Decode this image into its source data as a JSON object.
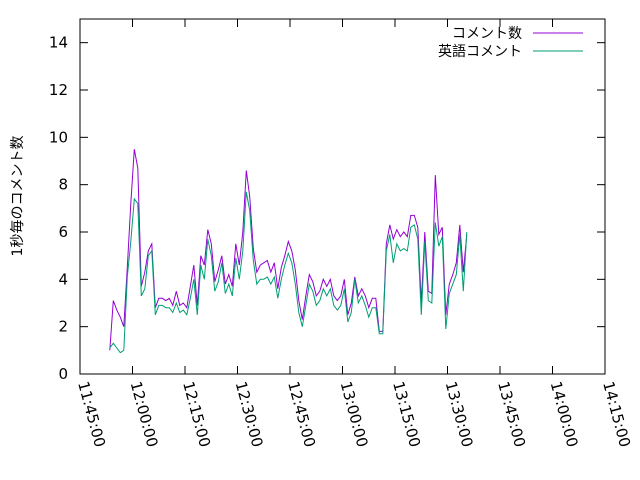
{
  "chart_data": {
    "type": "line",
    "title": "",
    "xlabel": "",
    "ylabel": "1秒毎のコメント数",
    "xlim": [
      "11:45:00",
      "14:15:00"
    ],
    "ylim": [
      0,
      15
    ],
    "xticks": [
      "11:45:00",
      "12:00:00",
      "12:15:00",
      "12:30:00",
      "12:45:00",
      "13:00:00",
      "13:15:00",
      "13:30:00",
      "13:45:00",
      "14:00:00",
      "14:15:00"
    ],
    "yticks": [
      0,
      2,
      4,
      6,
      8,
      10,
      12,
      14
    ],
    "legend_position": "top-right",
    "grid": false,
    "series": [
      {
        "name": "コメント数",
        "color": "#9400d3",
        "points": [
          [
            "11:53:30",
            1.0
          ],
          [
            "11:54:30",
            3.1
          ],
          [
            "11:55:30",
            2.7
          ],
          [
            "11:56:30",
            2.4
          ],
          [
            "11:57:30",
            2.0
          ],
          [
            "11:58:30",
            4.5
          ],
          [
            "11:59:30",
            7.2
          ],
          [
            "12:00:30",
            9.5
          ],
          [
            "12:01:30",
            8.7
          ],
          [
            "12:02:30",
            3.7
          ],
          [
            "12:03:30",
            4.3
          ],
          [
            "12:04:30",
            5.2
          ],
          [
            "12:05:30",
            5.5
          ],
          [
            "12:06:30",
            2.8
          ],
          [
            "12:07:30",
            3.2
          ],
          [
            "12:08:30",
            3.2
          ],
          [
            "12:09:30",
            3.1
          ],
          [
            "12:10:30",
            3.2
          ],
          [
            "12:11:30",
            2.9
          ],
          [
            "12:12:30",
            3.5
          ],
          [
            "12:13:30",
            2.9
          ],
          [
            "12:14:30",
            3.0
          ],
          [
            "12:15:30",
            2.8
          ],
          [
            "12:16:30",
            3.7
          ],
          [
            "12:17:30",
            4.6
          ],
          [
            "12:18:30",
            2.9
          ],
          [
            "12:19:30",
            5.0
          ],
          [
            "12:20:30",
            4.6
          ],
          [
            "12:21:30",
            6.1
          ],
          [
            "12:22:30",
            5.5
          ],
          [
            "12:23:30",
            3.9
          ],
          [
            "12:24:30",
            4.4
          ],
          [
            "12:25:30",
            5.0
          ],
          [
            "12:26:30",
            3.8
          ],
          [
            "12:27:30",
            4.2
          ],
          [
            "12:28:30",
            3.7
          ],
          [
            "12:29:30",
            5.5
          ],
          [
            "12:30:30",
            4.6
          ],
          [
            "12:31:30",
            6.0
          ],
          [
            "12:32:30",
            8.6
          ],
          [
            "12:33:30",
            7.5
          ],
          [
            "12:34:30",
            5.3
          ],
          [
            "12:35:30",
            4.3
          ],
          [
            "12:36:30",
            4.6
          ],
          [
            "12:37:30",
            4.7
          ],
          [
            "12:38:30",
            4.8
          ],
          [
            "12:39:30",
            4.3
          ],
          [
            "12:40:30",
            4.7
          ],
          [
            "12:41:30",
            3.6
          ],
          [
            "12:42:30",
            4.5
          ],
          [
            "12:43:30",
            5.0
          ],
          [
            "12:44:30",
            5.6
          ],
          [
            "12:45:30",
            5.2
          ],
          [
            "12:46:30",
            4.4
          ],
          [
            "12:47:30",
            3.1
          ],
          [
            "12:48:30",
            2.3
          ],
          [
            "12:49:30",
            3.3
          ],
          [
            "12:50:30",
            4.2
          ],
          [
            "12:51:30",
            3.9
          ],
          [
            "12:52:30",
            3.3
          ],
          [
            "12:53:30",
            3.5
          ],
          [
            "12:54:30",
            4.0
          ],
          [
            "12:55:30",
            3.7
          ],
          [
            "12:56:30",
            4.0
          ],
          [
            "12:57:30",
            3.3
          ],
          [
            "12:58:30",
            3.1
          ],
          [
            "12:59:30",
            3.3
          ],
          [
            "13:00:30",
            4.0
          ],
          [
            "13:01:30",
            2.5
          ],
          [
            "13:02:30",
            3.0
          ],
          [
            "13:03:30",
            4.1
          ],
          [
            "13:04:30",
            3.3
          ],
          [
            "13:05:30",
            3.6
          ],
          [
            "13:06:30",
            3.3
          ],
          [
            "13:07:30",
            2.8
          ],
          [
            "13:08:30",
            3.2
          ],
          [
            "13:09:30",
            3.2
          ],
          [
            "13:10:30",
            1.8
          ],
          [
            "13:11:30",
            1.8
          ],
          [
            "13:12:30",
            5.5
          ],
          [
            "13:13:30",
            6.3
          ],
          [
            "13:14:30",
            5.7
          ],
          [
            "13:15:30",
            6.1
          ],
          [
            "13:16:30",
            5.8
          ],
          [
            "13:17:30",
            6.0
          ],
          [
            "13:18:30",
            5.8
          ],
          [
            "13:19:30",
            6.7
          ],
          [
            "13:20:30",
            6.7
          ],
          [
            "13:21:30",
            6.2
          ],
          [
            "13:22:30",
            3.0
          ],
          [
            "13:23:30",
            6.0
          ],
          [
            "13:24:30",
            3.5
          ],
          [
            "13:25:30",
            3.4
          ],
          [
            "13:26:30",
            8.4
          ],
          [
            "13:27:30",
            5.9
          ],
          [
            "13:28:30",
            6.2
          ],
          [
            "13:29:30",
            2.5
          ],
          [
            "13:30:30",
            3.8
          ],
          [
            "13:31:30",
            4.2
          ],
          [
            "13:32:30",
            4.7
          ],
          [
            "13:33:30",
            6.3
          ],
          [
            "13:34:30",
            4.3
          ],
          [
            "13:35:30",
            5.9
          ]
        ]
      },
      {
        "name": "英語コメント",
        "color": "#009e73",
        "points": [
          [
            "11:53:30",
            1.1
          ],
          [
            "11:54:30",
            1.3
          ],
          [
            "11:55:30",
            1.1
          ],
          [
            "11:56:30",
            0.9
          ],
          [
            "11:57:30",
            1.0
          ],
          [
            "11:58:30",
            4.1
          ],
          [
            "11:59:30",
            5.6
          ],
          [
            "12:00:30",
            7.4
          ],
          [
            "12:01:30",
            7.2
          ],
          [
            "12:02:30",
            3.3
          ],
          [
            "12:03:30",
            3.6
          ],
          [
            "12:04:30",
            5.0
          ],
          [
            "12:05:30",
            5.2
          ],
          [
            "12:06:30",
            2.5
          ],
          [
            "12:07:30",
            2.9
          ],
          [
            "12:08:30",
            2.9
          ],
          [
            "12:09:30",
            2.8
          ],
          [
            "12:10:30",
            2.8
          ],
          [
            "12:11:30",
            2.6
          ],
          [
            "12:12:30",
            3.0
          ],
          [
            "12:13:30",
            2.6
          ],
          [
            "12:14:30",
            2.7
          ],
          [
            "12:15:30",
            2.5
          ],
          [
            "12:16:30",
            3.2
          ],
          [
            "12:17:30",
            4.0
          ],
          [
            "12:18:30",
            2.5
          ],
          [
            "12:19:30",
            4.6
          ],
          [
            "12:20:30",
            4.0
          ],
          [
            "12:21:30",
            5.7
          ],
          [
            "12:22:30",
            5.0
          ],
          [
            "12:23:30",
            3.5
          ],
          [
            "12:24:30",
            3.9
          ],
          [
            "12:25:30",
            4.7
          ],
          [
            "12:26:30",
            3.4
          ],
          [
            "12:27:30",
            3.8
          ],
          [
            "12:28:30",
            3.3
          ],
          [
            "12:29:30",
            4.9
          ],
          [
            "12:30:30",
            4.0
          ],
          [
            "12:31:30",
            5.2
          ],
          [
            "12:32:30",
            7.7
          ],
          [
            "12:33:30",
            6.9
          ],
          [
            "12:34:30",
            4.8
          ],
          [
            "12:35:30",
            3.8
          ],
          [
            "12:36:30",
            4.0
          ],
          [
            "12:37:30",
            4.0
          ],
          [
            "12:38:30",
            4.1
          ],
          [
            "12:39:30",
            3.8
          ],
          [
            "12:40:30",
            4.1
          ],
          [
            "12:41:30",
            3.2
          ],
          [
            "12:42:30",
            4.0
          ],
          [
            "12:43:30",
            4.6
          ],
          [
            "12:44:30",
            5.1
          ],
          [
            "12:45:30",
            4.7
          ],
          [
            "12:46:30",
            3.8
          ],
          [
            "12:47:30",
            2.6
          ],
          [
            "12:48:30",
            2.0
          ],
          [
            "12:49:30",
            2.9
          ],
          [
            "12:50:30",
            3.8
          ],
          [
            "12:51:30",
            3.5
          ],
          [
            "12:52:30",
            2.9
          ],
          [
            "12:53:30",
            3.1
          ],
          [
            "12:54:30",
            3.6
          ],
          [
            "12:55:30",
            3.3
          ],
          [
            "12:56:30",
            3.6
          ],
          [
            "12:57:30",
            2.9
          ],
          [
            "12:58:30",
            2.7
          ],
          [
            "12:59:30",
            2.9
          ],
          [
            "13:00:30",
            3.6
          ],
          [
            "13:01:30",
            2.2
          ],
          [
            "13:02:30",
            2.6
          ],
          [
            "13:03:30",
            4.0
          ],
          [
            "13:04:30",
            3.0
          ],
          [
            "13:05:30",
            3.3
          ],
          [
            "13:06:30",
            2.9
          ],
          [
            "13:07:30",
            2.4
          ],
          [
            "13:08:30",
            2.8
          ],
          [
            "13:09:30",
            2.8
          ],
          [
            "13:10:30",
            1.7
          ],
          [
            "13:11:30",
            1.7
          ],
          [
            "13:12:30",
            5.2
          ],
          [
            "13:13:30",
            5.9
          ],
          [
            "13:14:30",
            4.7
          ],
          [
            "13:15:30",
            5.5
          ],
          [
            "13:16:30",
            5.2
          ],
          [
            "13:17:30",
            5.3
          ],
          [
            "13:18:30",
            5.2
          ],
          [
            "13:19:30",
            6.2
          ],
          [
            "13:20:30",
            6.3
          ],
          [
            "13:21:30",
            5.7
          ],
          [
            "13:22:30",
            2.5
          ],
          [
            "13:23:30",
            5.6
          ],
          [
            "13:24:30",
            3.1
          ],
          [
            "13:25:30",
            3.0
          ],
          [
            "13:26:30",
            6.4
          ],
          [
            "13:27:30",
            5.4
          ],
          [
            "13:28:30",
            5.8
          ],
          [
            "13:29:30",
            1.9
          ],
          [
            "13:30:30",
            3.4
          ],
          [
            "13:31:30",
            3.8
          ],
          [
            "13:32:30",
            4.2
          ],
          [
            "13:33:30",
            5.9
          ],
          [
            "13:34:30",
            3.5
          ],
          [
            "13:35:30",
            6.0
          ]
        ]
      }
    ]
  }
}
